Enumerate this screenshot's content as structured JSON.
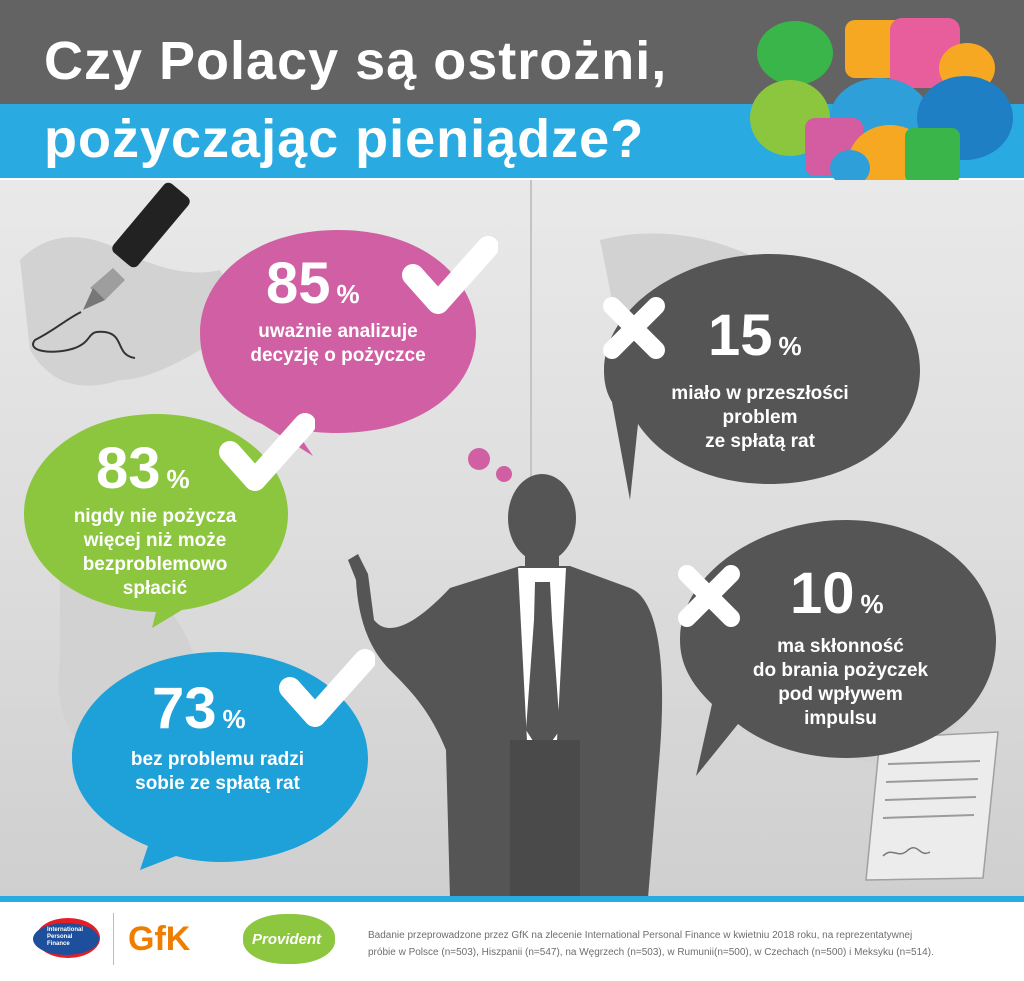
{
  "header": {
    "title_line_1": "Czy Polacy są ostrożni,",
    "title_line_2": "pożyczając pieniądze?"
  },
  "stats": [
    {
      "value": "85",
      "unit": "%",
      "text": "uważnie analizuje\ndecyzję o pożyczce",
      "bubble_color": "#d060a3",
      "mark": "check-icon"
    },
    {
      "value": "83",
      "unit": "%",
      "text": "nigdy nie pożycza\nwięcej niż może\nbezproblemowo\nspłacić",
      "bubble_color": "#8cc63f",
      "mark": "check-icon"
    },
    {
      "value": "73",
      "unit": "%",
      "text": "bez problemu radzi\nsobie ze spłatą rat",
      "bubble_color": "#1ea0d8",
      "mark": "check-icon"
    },
    {
      "value": "15",
      "unit": "%",
      "text": "miało w przeszłości\nproblem\nze spłatą rat",
      "bubble_color": "#555555",
      "mark": "cross-icon"
    },
    {
      "value": "10",
      "unit": "%",
      "text": "ma skłonność\ndo brania pożyczek\npod wpływem\nimpulsu",
      "bubble_color": "#555555",
      "mark": "cross-icon"
    }
  ],
  "footer": {
    "note_line_1": "Badanie przeprowadzone przez GfK na zlecenie International Personal Finance w kwietniu 2018 roku, na reprezentatywnej",
    "note_line_2": "próbie w Polsce (n=503), Hiszpanii (n=547), na Węgrzech (n=503), w Rumunii(n=500), w Czechach (n=500) i Meksyku (n=514).",
    "logo_ipf_line_1": "International",
    "logo_ipf_line_2": "Personal",
    "logo_ipf_line_3": "Finance",
    "logo_gfk": "GfK",
    "logo_provident": "Provident"
  },
  "colors": {
    "header_gray": "#636363",
    "header_blue": "#29abe2",
    "pink": "#d060a3",
    "green": "#8cc63f",
    "blue": "#1ea0d8",
    "dark": "#555555",
    "provident_green": "#8dc63f",
    "gfk_orange": "#ef7d00"
  }
}
